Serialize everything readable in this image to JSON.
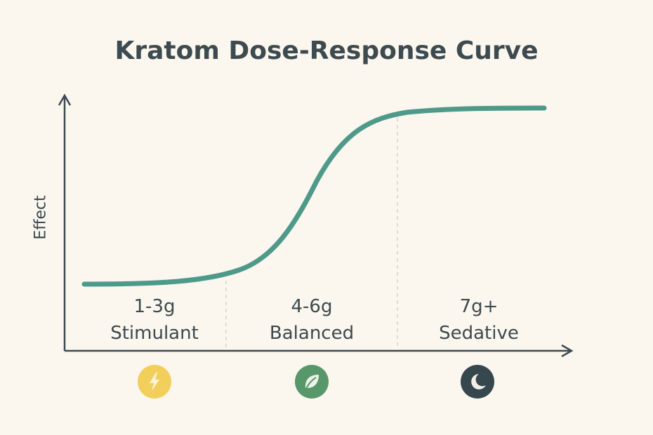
{
  "title": "Kratom Dose-Response Curve",
  "y_axis_label": "Effect",
  "zones": [
    {
      "dose": "1-3g",
      "label": "Stimulant",
      "icon": "lightning-bolt-icon",
      "color": "#f2cf5b"
    },
    {
      "dose": "4-6g",
      "label": "Balanced",
      "icon": "leaf-icon",
      "color": "#57976a"
    },
    {
      "dose": "7g+",
      "label": "Sedative",
      "icon": "moon-icon",
      "color": "#36474d"
    }
  ],
  "colors": {
    "curve": "#4e9a8a",
    "axis": "#3d4a4f",
    "background": "#fbf6ee"
  }
}
